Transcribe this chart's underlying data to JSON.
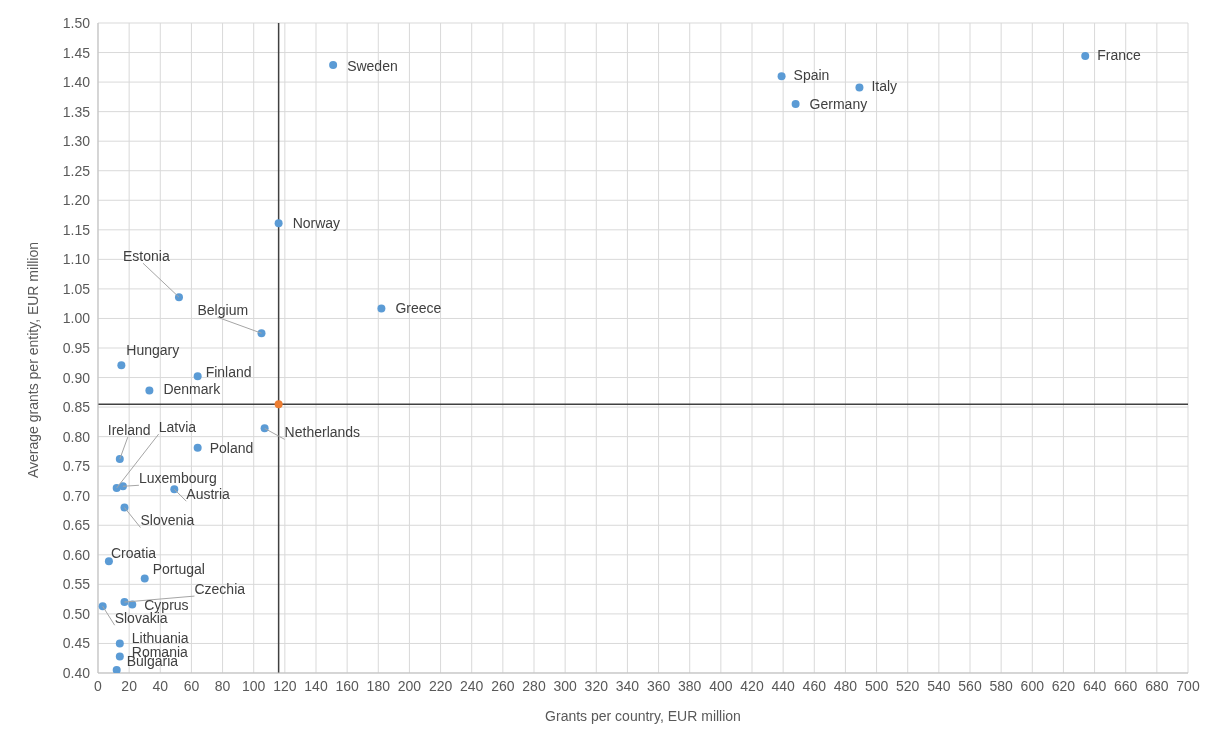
{
  "chart_data": {
    "type": "scatter",
    "xlabel": "Grants per country, EUR million",
    "ylabel": "Average grants per entity, EUR million",
    "xlim": [
      0,
      700
    ],
    "xticks": [
      0,
      20,
      40,
      60,
      80,
      100,
      120,
      140,
      160,
      180,
      200,
      220,
      240,
      260,
      280,
      300,
      320,
      340,
      360,
      380,
      400,
      420,
      440,
      460,
      480,
      500,
      520,
      540,
      560,
      580,
      600,
      620,
      640,
      660,
      680,
      700
    ],
    "ylim": [
      0.4,
      1.5
    ],
    "yticks": [
      {
        "value": 0.4,
        "label": "0.40"
      },
      {
        "value": 0.45,
        "label": "0.45"
      },
      {
        "value": 0.5,
        "label": "0.50"
      },
      {
        "value": 0.55,
        "label": "0.55"
      },
      {
        "value": 0.6,
        "label": "0.60"
      },
      {
        "value": 0.65,
        "label": "0.65"
      },
      {
        "value": 0.7,
        "label": "0.70"
      },
      {
        "value": 0.75,
        "label": "0.75"
      },
      {
        "value": 0.8,
        "label": "0.80"
      },
      {
        "value": 0.85,
        "label": "0.85"
      },
      {
        "value": 0.9,
        "label": "0.90"
      },
      {
        "value": 0.95,
        "label": "0.95"
      },
      {
        "value": 1.0,
        "label": "1.00"
      },
      {
        "value": 1.05,
        "label": "1.05"
      },
      {
        "value": 1.1,
        "label": "1.10"
      },
      {
        "value": 1.15,
        "label": "1.15"
      },
      {
        "value": 1.2,
        "label": "1.20"
      },
      {
        "value": 1.25,
        "label": "1.25"
      },
      {
        "value": 1.3,
        "label": "1.30"
      },
      {
        "value": 1.35,
        "label": "1.35"
      },
      {
        "value": 1.4,
        "label": "1.40"
      },
      {
        "value": 1.45,
        "label": "1.45"
      },
      {
        "value": 1.5,
        "label": "1.50"
      }
    ],
    "grid": true,
    "marker": "circle",
    "legend": false,
    "series": [
      {
        "color": "#5b9bd5",
        "x": [
          634,
          439,
          489,
          448,
          151,
          116,
          182,
          52,
          105,
          15,
          64,
          33,
          107,
          64,
          14,
          12,
          16,
          49,
          17,
          7,
          30,
          17,
          22,
          3,
          14,
          14,
          12
        ],
        "values": [
          1.444,
          1.41,
          1.391,
          1.363,
          1.429,
          1.161,
          1.017,
          1.036,
          0.975,
          0.921,
          0.902,
          0.878,
          0.814,
          0.781,
          0.762,
          0.713,
          0.716,
          0.711,
          0.68,
          0.589,
          0.56,
          0.52,
          0.516,
          0.513,
          0.45,
          0.428,
          0.405
        ]
      },
      {
        "color": "#ed7d31",
        "x": [
          116
        ],
        "values": [
          0.855
        ]
      }
    ],
    "ref_lines": [
      {
        "axis": "x",
        "value": 116,
        "color": "#404040"
      },
      {
        "axis": "y",
        "value": 0.855,
        "color": "#404040"
      }
    ],
    "annotations": [
      {
        "text": "France",
        "x": 634,
        "y": 1.444
      },
      {
        "text": "Spain",
        "x": 439,
        "y": 1.41
      },
      {
        "text": "Italy",
        "x": 489,
        "y": 1.391
      },
      {
        "text": "Germany",
        "x": 448,
        "y": 1.363
      },
      {
        "text": "Sweden",
        "x": 151,
        "y": 1.429
      },
      {
        "text": "Norway",
        "x": 116,
        "y": 1.161
      },
      {
        "text": "Greece",
        "x": 182,
        "y": 1.017
      },
      {
        "text": "Estonia",
        "x": 52,
        "y": 1.036
      },
      {
        "text": "Belgium",
        "x": 105,
        "y": 0.975
      },
      {
        "text": "Hungary",
        "x": 15,
        "y": 0.921
      },
      {
        "text": "Finland",
        "x": 64,
        "y": 0.902
      },
      {
        "text": "Denmark",
        "x": 33,
        "y": 0.878
      },
      {
        "text": "Netherlands",
        "x": 107,
        "y": 0.814
      },
      {
        "text": "Poland",
        "x": 64,
        "y": 0.781
      },
      {
        "text": "Ireland",
        "x": 14,
        "y": 0.762
      },
      {
        "text": "Latvia",
        "x": 12,
        "y": 0.713
      },
      {
        "text": "Luxembourg",
        "x": 16,
        "y": 0.716
      },
      {
        "text": "Austria",
        "x": 49,
        "y": 0.711
      },
      {
        "text": "Slovenia",
        "x": 17,
        "y": 0.68
      },
      {
        "text": "Croatia",
        "x": 7,
        "y": 0.589
      },
      {
        "text": "Portugal",
        "x": 30,
        "y": 0.56
      },
      {
        "text": "Czechia",
        "x": 17,
        "y": 0.52
      },
      {
        "text": "Cyprus",
        "x": 22,
        "y": 0.516
      },
      {
        "text": "Slovakia",
        "x": 3,
        "y": 0.513
      },
      {
        "text": "Lithuania",
        "x": 14,
        "y": 0.45
      },
      {
        "text": "Romania",
        "x": 14,
        "y": 0.428
      },
      {
        "text": "Bulgaria",
        "x": 12,
        "y": 0.405
      }
    ]
  }
}
